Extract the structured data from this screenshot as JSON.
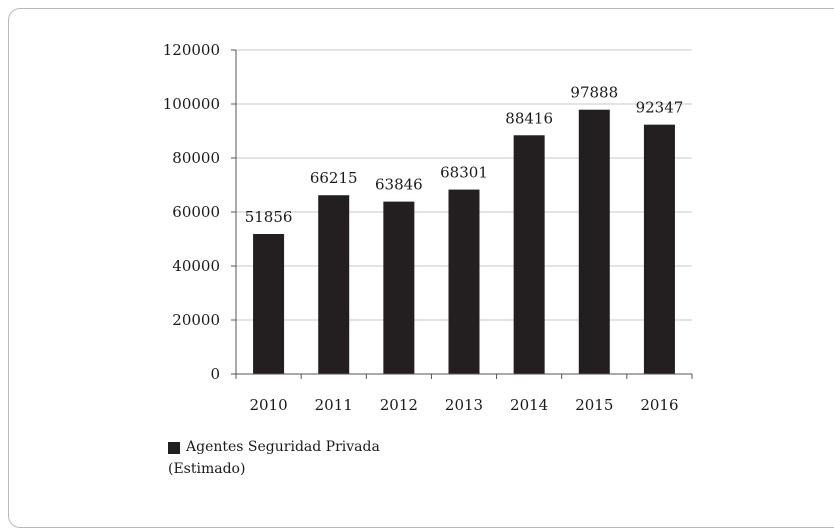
{
  "chart_data": {
    "type": "bar",
    "categories": [
      "2010",
      "2011",
      "2012",
      "2013",
      "2014",
      "2015",
      "2016"
    ],
    "series": [
      {
        "name": "Agentes Seguridad Privada (Estimado)",
        "values": [
          51856,
          66215,
          63846,
          68301,
          88416,
          97888,
          92347
        ],
        "color": "#231f20"
      }
    ],
    "data_labels": [
      "51856",
      "66215",
      "63846",
      "68301",
      "88416",
      "97888",
      "92347"
    ],
    "yticks": [
      "0",
      "20000",
      "40000",
      "60000",
      "80000",
      "100000",
      "120000"
    ],
    "ylim": [
      0,
      120000
    ],
    "grid": true,
    "title": "",
    "xlabel": "",
    "ylabel": "",
    "legend": {
      "position": "bottom-left",
      "line1": "Agentes Seguridad Privada",
      "line2": "(Estimado)"
    }
  }
}
